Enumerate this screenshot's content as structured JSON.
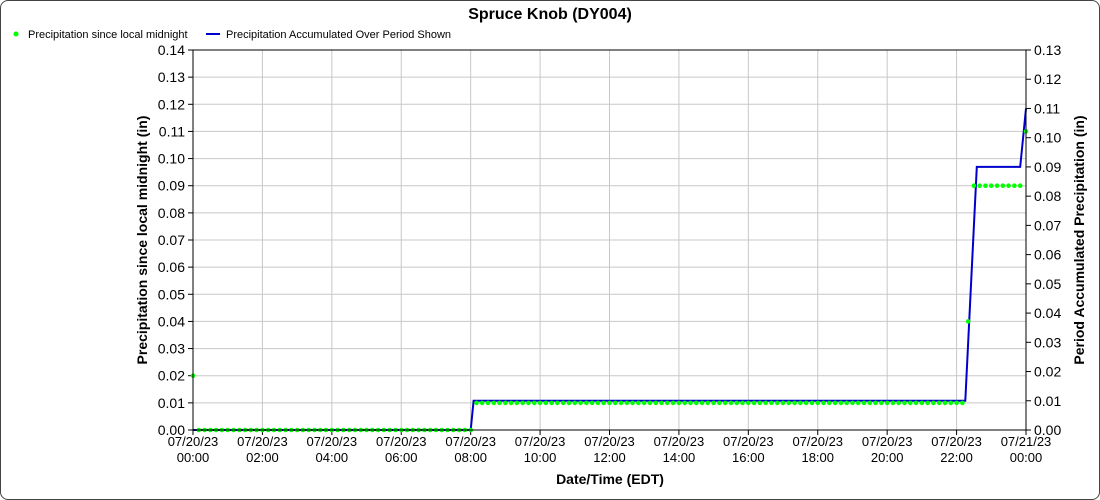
{
  "chart_data": {
    "type": "line",
    "title": "Spruce Knob (DY004)",
    "xlabel": "Date/Time (EDT)",
    "ylabel_left": "Precipitation since local midnight (in)",
    "ylabel_right": "Period Accumulated Precipitation (in)",
    "ylim_left": [
      0,
      0.14
    ],
    "ylim_right": [
      0,
      0.13
    ],
    "y_ticks_left": [
      "0.00",
      "0.01",
      "0.02",
      "0.03",
      "0.04",
      "0.05",
      "0.06",
      "0.07",
      "0.08",
      "0.09",
      "0.10",
      "0.11",
      "0.12",
      "0.13",
      "0.14"
    ],
    "y_ticks_right": [
      "0.00",
      "0.01",
      "0.02",
      "0.03",
      "0.04",
      "0.05",
      "0.06",
      "0.07",
      "0.08",
      "0.09",
      "0.10",
      "0.11",
      "0.12",
      "0.13"
    ],
    "x_range": [
      "2023-07-20 00:00",
      "2023-07-21 00:00"
    ],
    "x_ticks": [
      {
        "date": "07/20/23",
        "time": "00:00"
      },
      {
        "date": "07/20/23",
        "time": "02:00"
      },
      {
        "date": "07/20/23",
        "time": "04:00"
      },
      {
        "date": "07/20/23",
        "time": "06:00"
      },
      {
        "date": "07/20/23",
        "time": "08:00"
      },
      {
        "date": "07/20/23",
        "time": "10:00"
      },
      {
        "date": "07/20/23",
        "time": "12:00"
      },
      {
        "date": "07/20/23",
        "time": "14:00"
      },
      {
        "date": "07/20/23",
        "time": "16:00"
      },
      {
        "date": "07/20/23",
        "time": "18:00"
      },
      {
        "date": "07/20/23",
        "time": "20:00"
      },
      {
        "date": "07/20/23",
        "time": "22:00"
      },
      {
        "date": "07/21/23",
        "time": "00:00"
      }
    ],
    "grid": true,
    "legend_position": "top-left",
    "series": [
      {
        "name": "Precipitation since local midnight",
        "type": "scatter",
        "axis": "left",
        "color": "#00ff00",
        "points": [
          {
            "x": "2023-07-20 00:00",
            "y": 0.02
          },
          {
            "x": "2023-07-20 00:10",
            "y": 0.0
          },
          {
            "x": "2023-07-20 00:20",
            "y": 0.0
          },
          {
            "x": "2023-07-20 00:30",
            "y": 0.0
          },
          {
            "x": "2023-07-20 00:40",
            "y": 0.0
          },
          {
            "x": "2023-07-20 00:50",
            "y": 0.0
          },
          {
            "x": "2023-07-20 01:00",
            "y": 0.0
          },
          {
            "x": "2023-07-20 01:10",
            "y": 0.0
          },
          {
            "x": "2023-07-20 01:20",
            "y": 0.0
          },
          {
            "x": "2023-07-20 01:30",
            "y": 0.0
          },
          {
            "x": "2023-07-20 01:40",
            "y": 0.0
          },
          {
            "x": "2023-07-20 01:50",
            "y": 0.0
          },
          {
            "x": "2023-07-20 02:00",
            "y": 0.0
          },
          {
            "x": "2023-07-20 02:10",
            "y": 0.0
          },
          {
            "x": "2023-07-20 02:20",
            "y": 0.0
          },
          {
            "x": "2023-07-20 02:30",
            "y": 0.0
          },
          {
            "x": "2023-07-20 02:40",
            "y": 0.0
          },
          {
            "x": "2023-07-20 02:50",
            "y": 0.0
          },
          {
            "x": "2023-07-20 03:00",
            "y": 0.0
          },
          {
            "x": "2023-07-20 03:10",
            "y": 0.0
          },
          {
            "x": "2023-07-20 03:20",
            "y": 0.0
          },
          {
            "x": "2023-07-20 03:30",
            "y": 0.0
          },
          {
            "x": "2023-07-20 03:40",
            "y": 0.0
          },
          {
            "x": "2023-07-20 03:50",
            "y": 0.0
          },
          {
            "x": "2023-07-20 04:00",
            "y": 0.0
          },
          {
            "x": "2023-07-20 04:10",
            "y": 0.0
          },
          {
            "x": "2023-07-20 04:20",
            "y": 0.0
          },
          {
            "x": "2023-07-20 04:30",
            "y": 0.0
          },
          {
            "x": "2023-07-20 04:40",
            "y": 0.0
          },
          {
            "x": "2023-07-20 04:50",
            "y": 0.0
          },
          {
            "x": "2023-07-20 05:00",
            "y": 0.0
          },
          {
            "x": "2023-07-20 05:10",
            "y": 0.0
          },
          {
            "x": "2023-07-20 05:20",
            "y": 0.0
          },
          {
            "x": "2023-07-20 05:30",
            "y": 0.0
          },
          {
            "x": "2023-07-20 05:40",
            "y": 0.0
          },
          {
            "x": "2023-07-20 05:50",
            "y": 0.0
          },
          {
            "x": "2023-07-20 06:00",
            "y": 0.0
          },
          {
            "x": "2023-07-20 06:10",
            "y": 0.0
          },
          {
            "x": "2023-07-20 06:20",
            "y": 0.0
          },
          {
            "x": "2023-07-20 06:30",
            "y": 0.0
          },
          {
            "x": "2023-07-20 06:40",
            "y": 0.0
          },
          {
            "x": "2023-07-20 06:50",
            "y": 0.0
          },
          {
            "x": "2023-07-20 07:00",
            "y": 0.0
          },
          {
            "x": "2023-07-20 07:10",
            "y": 0.0
          },
          {
            "x": "2023-07-20 07:20",
            "y": 0.0
          },
          {
            "x": "2023-07-20 07:30",
            "y": 0.0
          },
          {
            "x": "2023-07-20 07:40",
            "y": 0.0
          },
          {
            "x": "2023-07-20 07:50",
            "y": 0.0
          },
          {
            "x": "2023-07-20 08:00",
            "y": 0.0
          },
          {
            "x": "2023-07-20 08:10",
            "y": 0.01
          },
          {
            "x": "2023-07-20 08:20",
            "y": 0.01
          },
          {
            "x": "2023-07-20 08:30",
            "y": 0.01
          },
          {
            "x": "2023-07-20 08:40",
            "y": 0.01
          },
          {
            "x": "2023-07-20 08:50",
            "y": 0.01
          },
          {
            "x": "2023-07-20 09:00",
            "y": 0.01
          },
          {
            "x": "2023-07-20 09:10",
            "y": 0.01
          },
          {
            "x": "2023-07-20 09:20",
            "y": 0.01
          },
          {
            "x": "2023-07-20 09:30",
            "y": 0.01
          },
          {
            "x": "2023-07-20 09:40",
            "y": 0.01
          },
          {
            "x": "2023-07-20 09:50",
            "y": 0.01
          },
          {
            "x": "2023-07-20 10:00",
            "y": 0.01
          },
          {
            "x": "2023-07-20 10:10",
            "y": 0.01
          },
          {
            "x": "2023-07-20 10:20",
            "y": 0.01
          },
          {
            "x": "2023-07-20 10:30",
            "y": 0.01
          },
          {
            "x": "2023-07-20 10:40",
            "y": 0.01
          },
          {
            "x": "2023-07-20 10:50",
            "y": 0.01
          },
          {
            "x": "2023-07-20 11:00",
            "y": 0.01
          },
          {
            "x": "2023-07-20 11:10",
            "y": 0.01
          },
          {
            "x": "2023-07-20 11:20",
            "y": 0.01
          },
          {
            "x": "2023-07-20 11:30",
            "y": 0.01
          },
          {
            "x": "2023-07-20 11:40",
            "y": 0.01
          },
          {
            "x": "2023-07-20 11:50",
            "y": 0.01
          },
          {
            "x": "2023-07-20 12:00",
            "y": 0.01
          },
          {
            "x": "2023-07-20 12:10",
            "y": 0.01
          },
          {
            "x": "2023-07-20 12:20",
            "y": 0.01
          },
          {
            "x": "2023-07-20 12:30",
            "y": 0.01
          },
          {
            "x": "2023-07-20 12:40",
            "y": 0.01
          },
          {
            "x": "2023-07-20 12:50",
            "y": 0.01
          },
          {
            "x": "2023-07-20 13:00",
            "y": 0.01
          },
          {
            "x": "2023-07-20 13:10",
            "y": 0.01
          },
          {
            "x": "2023-07-20 13:20",
            "y": 0.01
          },
          {
            "x": "2023-07-20 13:30",
            "y": 0.01
          },
          {
            "x": "2023-07-20 13:40",
            "y": 0.01
          },
          {
            "x": "2023-07-20 13:50",
            "y": 0.01
          },
          {
            "x": "2023-07-20 14:00",
            "y": 0.01
          },
          {
            "x": "2023-07-20 14:10",
            "y": 0.01
          },
          {
            "x": "2023-07-20 14:20",
            "y": 0.01
          },
          {
            "x": "2023-07-20 14:30",
            "y": 0.01
          },
          {
            "x": "2023-07-20 14:40",
            "y": 0.01
          },
          {
            "x": "2023-07-20 14:50",
            "y": 0.01
          },
          {
            "x": "2023-07-20 15:00",
            "y": 0.01
          },
          {
            "x": "2023-07-20 15:10",
            "y": 0.01
          },
          {
            "x": "2023-07-20 15:20",
            "y": 0.01
          },
          {
            "x": "2023-07-20 15:30",
            "y": 0.01
          },
          {
            "x": "2023-07-20 15:40",
            "y": 0.01
          },
          {
            "x": "2023-07-20 15:50",
            "y": 0.01
          },
          {
            "x": "2023-07-20 16:00",
            "y": 0.01
          },
          {
            "x": "2023-07-20 16:10",
            "y": 0.01
          },
          {
            "x": "2023-07-20 16:20",
            "y": 0.01
          },
          {
            "x": "2023-07-20 16:30",
            "y": 0.01
          },
          {
            "x": "2023-07-20 16:40",
            "y": 0.01
          },
          {
            "x": "2023-07-20 16:50",
            "y": 0.01
          },
          {
            "x": "2023-07-20 17:00",
            "y": 0.01
          },
          {
            "x": "2023-07-20 17:10",
            "y": 0.01
          },
          {
            "x": "2023-07-20 17:20",
            "y": 0.01
          },
          {
            "x": "2023-07-20 17:30",
            "y": 0.01
          },
          {
            "x": "2023-07-20 17:40",
            "y": 0.01
          },
          {
            "x": "2023-07-20 17:50",
            "y": 0.01
          },
          {
            "x": "2023-07-20 18:00",
            "y": 0.01
          },
          {
            "x": "2023-07-20 18:10",
            "y": 0.01
          },
          {
            "x": "2023-07-20 18:20",
            "y": 0.01
          },
          {
            "x": "2023-07-20 18:30",
            "y": 0.01
          },
          {
            "x": "2023-07-20 18:40",
            "y": 0.01
          },
          {
            "x": "2023-07-20 18:50",
            "y": 0.01
          },
          {
            "x": "2023-07-20 19:00",
            "y": 0.01
          },
          {
            "x": "2023-07-20 19:10",
            "y": 0.01
          },
          {
            "x": "2023-07-20 19:20",
            "y": 0.01
          },
          {
            "x": "2023-07-20 19:30",
            "y": 0.01
          },
          {
            "x": "2023-07-20 19:40",
            "y": 0.01
          },
          {
            "x": "2023-07-20 19:50",
            "y": 0.01
          },
          {
            "x": "2023-07-20 20:00",
            "y": 0.01
          },
          {
            "x": "2023-07-20 20:10",
            "y": 0.01
          },
          {
            "x": "2023-07-20 20:20",
            "y": 0.01
          },
          {
            "x": "2023-07-20 20:30",
            "y": 0.01
          },
          {
            "x": "2023-07-20 20:40",
            "y": 0.01
          },
          {
            "x": "2023-07-20 20:50",
            "y": 0.01
          },
          {
            "x": "2023-07-20 21:00",
            "y": 0.01
          },
          {
            "x": "2023-07-20 21:10",
            "y": 0.01
          },
          {
            "x": "2023-07-20 21:20",
            "y": 0.01
          },
          {
            "x": "2023-07-20 21:30",
            "y": 0.01
          },
          {
            "x": "2023-07-20 21:40",
            "y": 0.01
          },
          {
            "x": "2023-07-20 21:50",
            "y": 0.01
          },
          {
            "x": "2023-07-20 22:00",
            "y": 0.01
          },
          {
            "x": "2023-07-20 22:10",
            "y": 0.01
          },
          {
            "x": "2023-07-20 22:20",
            "y": 0.04
          },
          {
            "x": "2023-07-20 22:30",
            "y": 0.09
          },
          {
            "x": "2023-07-20 22:40",
            "y": 0.09
          },
          {
            "x": "2023-07-20 22:50",
            "y": 0.09
          },
          {
            "x": "2023-07-20 23:00",
            "y": 0.09
          },
          {
            "x": "2023-07-20 23:10",
            "y": 0.09
          },
          {
            "x": "2023-07-20 23:20",
            "y": 0.09
          },
          {
            "x": "2023-07-20 23:30",
            "y": 0.09
          },
          {
            "x": "2023-07-20 23:40",
            "y": 0.09
          },
          {
            "x": "2023-07-20 23:50",
            "y": 0.09
          },
          {
            "x": "2023-07-21 00:00",
            "y": 0.11
          }
        ]
      },
      {
        "name": "Precipitation Accumulated Over Period Shown",
        "type": "line",
        "axis": "right",
        "color": "#0000cc",
        "points": [
          {
            "x": "2023-07-20 00:00",
            "y": 0.0
          },
          {
            "x": "2023-07-20 08:00",
            "y": 0.0
          },
          {
            "x": "2023-07-20 08:05",
            "y": 0.01
          },
          {
            "x": "2023-07-20 21:50",
            "y": 0.01
          },
          {
            "x": "2023-07-20 22:15",
            "y": 0.01
          },
          {
            "x": "2023-07-20 22:35",
            "y": 0.09
          },
          {
            "x": "2023-07-20 23:50",
            "y": 0.09
          },
          {
            "x": "2023-07-21 00:00",
            "y": 0.11
          }
        ]
      }
    ]
  }
}
